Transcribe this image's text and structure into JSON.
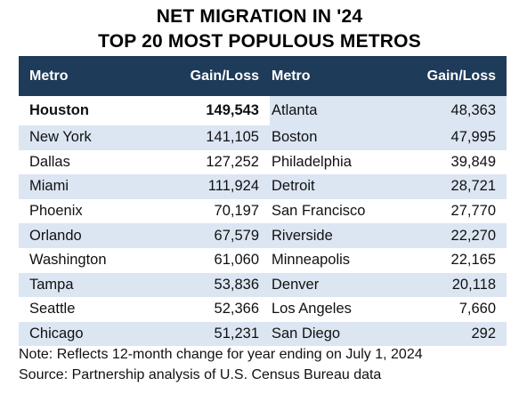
{
  "title_line1": "NET MIGRATION IN '24",
  "title_line2": "TOP 20 MOST POPULOUS METROS",
  "columns": {
    "metro_left": "Metro",
    "gain_left": "Gain/Loss",
    "metro_right": "Metro",
    "gain_right": "Gain/Loss"
  },
  "rows": [
    {
      "metro1": "Houston",
      "gain1": "149,543",
      "metro2": "Atlanta",
      "gain2": "48,363"
    },
    {
      "metro1": "New York",
      "gain1": "141,105",
      "metro2": "Boston",
      "gain2": "47,995"
    },
    {
      "metro1": "Dallas",
      "gain1": "127,252",
      "metro2": "Philadelphia",
      "gain2": "39,849"
    },
    {
      "metro1": "Miami",
      "gain1": "111,924",
      "metro2": "Detroit",
      "gain2": "28,721"
    },
    {
      "metro1": "Phoenix",
      "gain1": "70,197",
      "metro2": "San Francisco",
      "gain2": "27,770"
    },
    {
      "metro1": "Orlando",
      "gain1": "67,579",
      "metro2": "Riverside",
      "gain2": "22,270"
    },
    {
      "metro1": "Washington",
      "gain1": "61,060",
      "metro2": "Minneapolis",
      "gain2": "22,165"
    },
    {
      "metro1": "Tampa",
      "gain1": "53,836",
      "metro2": "Denver",
      "gain2": "20,118"
    },
    {
      "metro1": "Seattle",
      "gain1": "52,366",
      "metro2": "Los Angeles",
      "gain2": "7,660"
    },
    {
      "metro1": "Chicago",
      "gain1": "51,231",
      "metro2": "San Diego",
      "gain2": "292"
    }
  ],
  "note": "Note: Reflects 12-month change for year ending on July 1, 2024",
  "source": "Source: Partnership analysis of U.S. Census Bureau data",
  "colors": {
    "header_bg": "#1f3b5a",
    "shaded_row": "#dce6f3"
  }
}
